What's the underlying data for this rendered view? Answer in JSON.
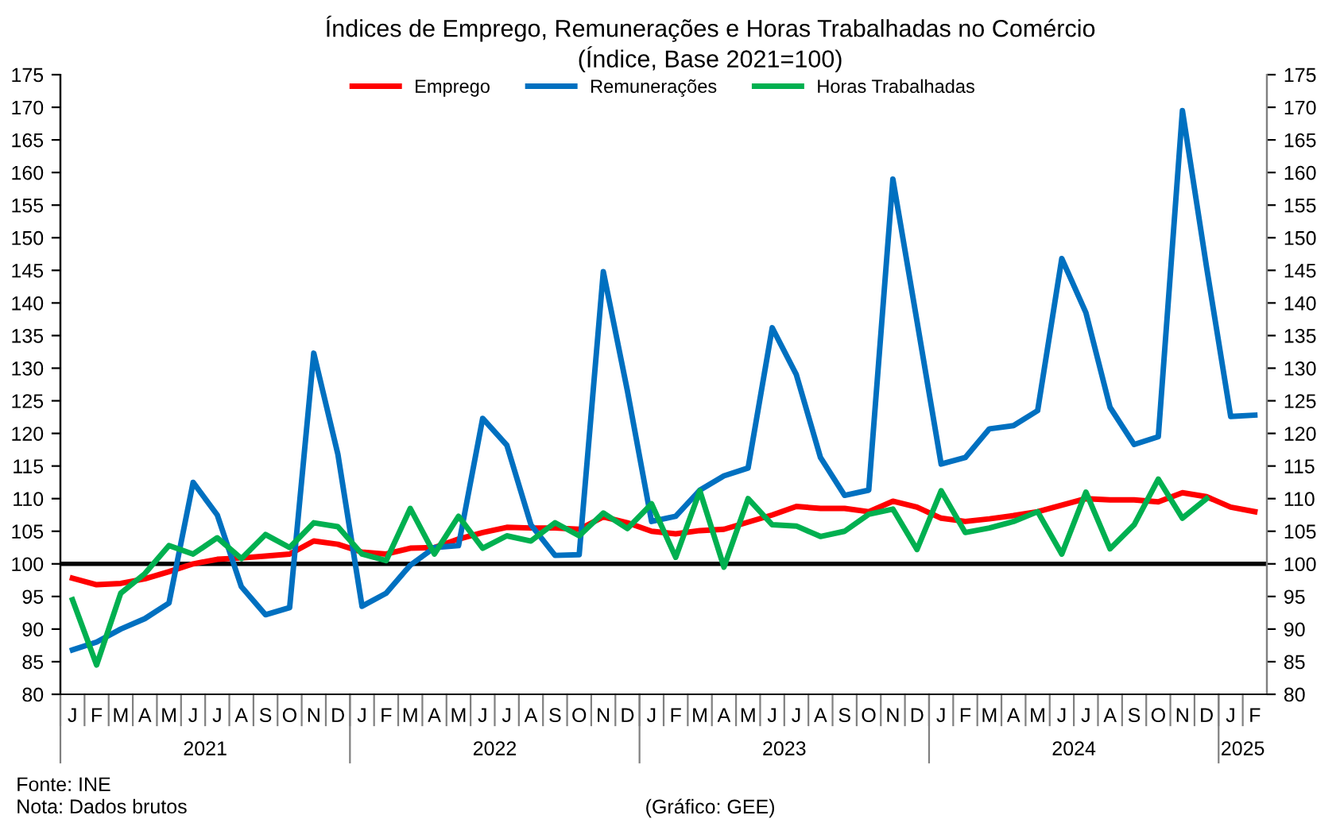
{
  "chart_data": {
    "type": "line",
    "title": "Índices de Emprego, Remunerações e Horas Trabalhadas no Comércio",
    "subtitle": "(Índice, Base 2021=100)",
    "categories": [
      "J",
      "F",
      "M",
      "A",
      "M",
      "J",
      "J",
      "A",
      "S",
      "O",
      "N",
      "D",
      "J",
      "F",
      "M",
      "A",
      "M",
      "J",
      "J",
      "A",
      "S",
      "O",
      "N",
      "D",
      "J",
      "F",
      "M",
      "A",
      "M",
      "J",
      "J",
      "A",
      "S",
      "O",
      "N",
      "D",
      "J",
      "F",
      "M",
      "A",
      "M",
      "J",
      "J",
      "A",
      "S",
      "O",
      "N",
      "D",
      "J",
      "F"
    ],
    "series": [
      {
        "name": "Emprego",
        "color": "#ff0000",
        "values": [
          97.8,
          96.8,
          97.0,
          97.7,
          98.8,
          100.0,
          100.7,
          100.9,
          101.2,
          101.5,
          103.5,
          103.0,
          101.8,
          101.5,
          102.4,
          102.5,
          103.8,
          104.8,
          105.6,
          105.5,
          105.5,
          105.3,
          107.2,
          106.3,
          105.0,
          104.6,
          105.1,
          105.3,
          106.4,
          107.5,
          108.8,
          108.5,
          108.5,
          108.0,
          109.6,
          108.7,
          107.0,
          106.5,
          106.9,
          107.4,
          108.0,
          109.0,
          110.0,
          109.8,
          109.8,
          109.5,
          110.9,
          110.3,
          108.7,
          108.0
        ]
      },
      {
        "name": "Remunerações",
        "color": "#0070c0",
        "values": [
          86.8,
          88.0,
          90.0,
          91.6,
          94.0,
          112.5,
          107.5,
          96.5,
          92.2,
          93.3,
          132.3,
          116.8,
          93.5,
          95.5,
          99.8,
          102.5,
          102.8,
          122.3,
          118.2,
          106.0,
          101.3,
          101.4,
          144.8,
          126.5,
          106.5,
          107.3,
          111.3,
          113.5,
          114.7,
          136.2,
          129.0,
          116.3,
          110.5,
          111.3,
          159.0,
          137.2,
          115.3,
          116.3,
          120.7,
          121.2,
          123.5,
          146.8,
          138.5,
          124.0,
          118.3,
          119.5,
          169.5,
          145.5,
          122.6,
          122.8
        ]
      },
      {
        "name": "Horas Trabalhadas",
        "color": "#00b050",
        "values": [
          94.5,
          84.5,
          95.5,
          98.5,
          102.8,
          101.5,
          104.0,
          100.8,
          104.5,
          102.5,
          106.3,
          105.7,
          101.5,
          100.5,
          108.5,
          101.5,
          107.3,
          102.4,
          104.3,
          103.5,
          106.3,
          104.3,
          107.8,
          105.4,
          109.2,
          101.0,
          111.2,
          99.5,
          110.0,
          106.0,
          105.8,
          104.2,
          105.0,
          107.6,
          108.4,
          102.2,
          111.2,
          104.8,
          105.5,
          106.5,
          108.0,
          101.5,
          111.0,
          102.3,
          106.0,
          113.0,
          107.0,
          110.0,
          null,
          null
        ]
      }
    ],
    "ylim": [
      80,
      175
    ],
    "yticks": [
      80,
      85,
      90,
      95,
      100,
      105,
      110,
      115,
      120,
      125,
      130,
      135,
      140,
      145,
      150,
      155,
      160,
      165,
      170,
      175
    ],
    "y2lim": [
      80,
      175
    ],
    "y2ticks": [
      80,
      85,
      90,
      95,
      100,
      105,
      110,
      115,
      120,
      125,
      130,
      135,
      140,
      145,
      150,
      155,
      160,
      165,
      170,
      175
    ],
    "ref_lines": [
      {
        "axis": "y",
        "value": 100,
        "color": "#000000"
      }
    ],
    "annotations": [
      "2021",
      "2022",
      "2023",
      "2024",
      "2025",
      "Fonte: INE",
      "Nota: Dados brutos",
      "(Gráfico: GEE)"
    ],
    "legend": "top",
    "grid": false,
    "marker": "none",
    "line_style": "solid"
  }
}
